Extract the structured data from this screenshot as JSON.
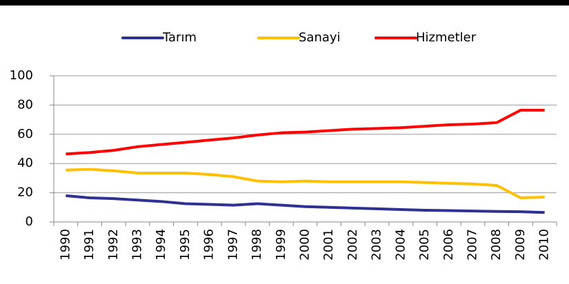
{
  "chart_data": {
    "type": "line",
    "categories": [
      "1990",
      "1991",
      "1992",
      "1993",
      "1994",
      "1995",
      "1996",
      "1997",
      "1998",
      "1999",
      "2000",
      "2001",
      "2002",
      "2003",
      "2004",
      "2005",
      "2006",
      "2007",
      "2008",
      "2009",
      "2010"
    ],
    "series": [
      {
        "name": "Tarım",
        "color": "#2e3192",
        "values": [
          18,
          16.5,
          16,
          15,
          14,
          12.5,
          12,
          11.5,
          12.5,
          11.5,
          10.5,
          10,
          9.5,
          9,
          8.5,
          8,
          7.8,
          7.5,
          7.2,
          7,
          6.5
        ]
      },
      {
        "name": "Sanayi",
        "color": "#ffc000",
        "values": [
          35.5,
          36,
          35,
          33.5,
          33.5,
          33.5,
          32.5,
          31,
          28,
          27.5,
          28,
          27.5,
          27.5,
          27.5,
          27.5,
          27,
          26.5,
          26,
          25,
          16.5,
          17
        ]
      },
      {
        "name": "Hizmetler",
        "color": "#ff0000",
        "values": [
          46.5,
          47.5,
          49,
          51.5,
          53,
          54.5,
          56,
          57.5,
          59.5,
          61,
          61.5,
          62.5,
          63.5,
          64,
          64.5,
          65.5,
          66.5,
          67,
          68,
          76.5,
          76.5
        ]
      }
    ],
    "ylim": [
      0,
      100
    ],
    "yticks": [
      0,
      20,
      40,
      60,
      80,
      100
    ],
    "grid": true,
    "legend": "top"
  }
}
